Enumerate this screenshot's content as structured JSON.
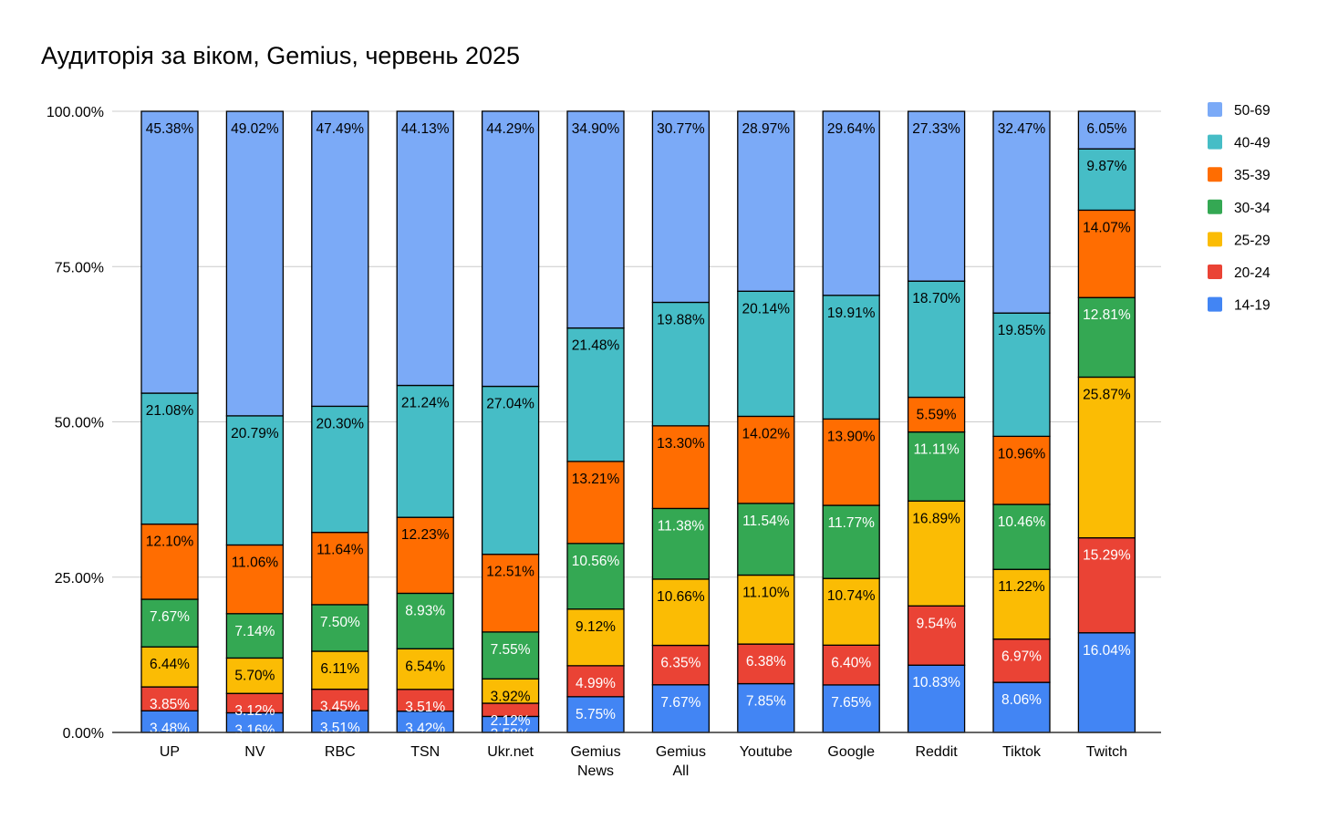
{
  "chart_data": {
    "type": "bar",
    "stacked": true,
    "title": "Аудиторія за віком, Gemius, червень 2025",
    "xlabel": "",
    "ylabel": "",
    "ylim": [
      0,
      100
    ],
    "y_ticks": [
      "0.00%",
      "25.00%",
      "50.00%",
      "75.00%",
      "100.00%"
    ],
    "y_tick_values": [
      0,
      25,
      50,
      75,
      100
    ],
    "grid": true,
    "legend_position": "right",
    "categories": [
      [
        "UP"
      ],
      [
        "NV"
      ],
      [
        "RBC"
      ],
      [
        "TSN"
      ],
      [
        "Ukr.net"
      ],
      [
        "Gemius",
        "News"
      ],
      [
        "Gemius",
        "All"
      ],
      [
        "Youtube"
      ],
      [
        "Google"
      ],
      [
        "Reddit"
      ],
      [
        "Tiktok"
      ],
      [
        "Twitch"
      ]
    ],
    "series": [
      {
        "name": "14-19",
        "color": "#4285f4",
        "label_color": "#ffffff",
        "values": [
          3.48,
          3.16,
          3.51,
          3.42,
          2.58,
          5.75,
          7.67,
          7.85,
          7.65,
          10.83,
          8.06,
          16.04
        ],
        "labels": [
          "3.48%",
          "3.16%",
          "3.51%",
          "3.42%",
          "2.58%",
          "5.75%",
          "7.67%",
          "7.85%",
          "7.65%",
          "10.83%",
          "8.06%",
          "16.04%"
        ]
      },
      {
        "name": "20-24",
        "color": "#ea4335",
        "label_color": "#ffffff",
        "values": [
          3.85,
          3.12,
          3.45,
          3.51,
          2.12,
          4.99,
          6.35,
          6.38,
          6.4,
          9.54,
          6.97,
          15.29
        ],
        "labels": [
          "3.85%",
          "3.12%",
          "3.45%",
          "3.51%",
          "2.12%",
          "4.99%",
          "6.35%",
          "6.38%",
          "6.40%",
          "9.54%",
          "6.97%",
          "15.29%"
        ]
      },
      {
        "name": "25-29",
        "color": "#fbbc04",
        "label_color": "#000000",
        "values": [
          6.44,
          5.7,
          6.11,
          6.54,
          3.92,
          9.12,
          10.66,
          11.1,
          10.74,
          16.89,
          11.22,
          25.87
        ],
        "labels": [
          "6.44%",
          "5.70%",
          "6.11%",
          "6.54%",
          "3.92%",
          "9.12%",
          "10.66%",
          "11.10%",
          "10.74%",
          "16.89%",
          "11.22%",
          "25.87%"
        ]
      },
      {
        "name": "30-34",
        "color": "#34a853",
        "label_color": "#ffffff",
        "values": [
          7.67,
          7.14,
          7.5,
          8.93,
          7.55,
          10.56,
          11.38,
          11.54,
          11.77,
          11.11,
          10.46,
          12.81
        ],
        "labels": [
          "7.67%",
          "7.14%",
          "7.50%",
          "8.93%",
          "7.55%",
          "10.56%",
          "11.38%",
          "11.54%",
          "11.77%",
          "11.11%",
          "10.46%",
          "12.81%"
        ]
      },
      {
        "name": "35-39",
        "color": "#ff6d01",
        "label_color": "#000000",
        "values": [
          12.1,
          11.06,
          11.64,
          12.23,
          12.51,
          13.21,
          13.3,
          14.02,
          13.9,
          5.59,
          10.96,
          14.07
        ],
        "labels": [
          "12.10%",
          "11.06%",
          "11.64%",
          "12.23%",
          "12.51%",
          "13.21%",
          "13.30%",
          "14.02%",
          "13.90%",
          "5.59%",
          "10.96%",
          "14.07%"
        ]
      },
      {
        "name": "40-49",
        "color": "#46bdc6",
        "label_color": "#000000",
        "values": [
          21.08,
          20.79,
          20.3,
          21.24,
          27.04,
          21.48,
          19.88,
          20.14,
          19.91,
          18.7,
          19.85,
          9.87
        ],
        "labels": [
          "21.08%",
          "20.79%",
          "20.30%",
          "21.24%",
          "27.04%",
          "21.48%",
          "19.88%",
          "20.14%",
          "19.91%",
          "18.70%",
          "19.85%",
          "9.87%"
        ]
      },
      {
        "name": "50-69",
        "color": "#7baaf7",
        "label_color": "#000000",
        "values": [
          45.38,
          49.02,
          47.49,
          44.13,
          44.29,
          34.9,
          30.77,
          28.97,
          29.64,
          27.33,
          32.47,
          6.05
        ],
        "labels": [
          "45.38%",
          "49.02%",
          "47.49%",
          "44.13%",
          "44.29%",
          "34.90%",
          "30.77%",
          "28.97%",
          "29.64%",
          "27.33%",
          "32.47%",
          "6.05%"
        ]
      }
    ]
  }
}
